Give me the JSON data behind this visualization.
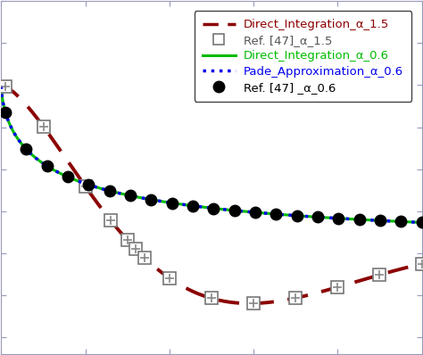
{
  "background_color": "#ffffff",
  "xlim": [
    0.0,
    5.0
  ],
  "ylim_display": [
    -0.6,
    1.5
  ],
  "tick_color": "#9999bb",
  "spine_color": "#9999bb",
  "line_di_15_color": "#8B0000",
  "line_di_06_color": "#00BB00",
  "line_pade_color": "#0000EE",
  "ref15_edge_color": "#888888",
  "ref06_color": "#000000",
  "legend_fontsize": 9.5,
  "legend_label_di15": "Direct_Integration_α_1.5",
  "legend_label_ref15": "Ref. [47]_α_1.5",
  "legend_label_di06": "Direct_Integration_α_0.6",
  "legend_label_pade": "Pade_Approximation_α_0.6",
  "legend_label_ref06": "Ref. [47] _α_0.6"
}
